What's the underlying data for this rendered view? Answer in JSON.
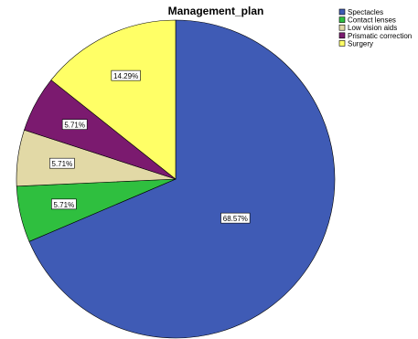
{
  "chart_data": {
    "type": "pie",
    "title": "Management_plan",
    "categories": [
      "Spectacles",
      "Contact lenses",
      "Low vision aids",
      "Prismatic correction",
      "Surgery"
    ],
    "values": [
      68.57,
      5.71,
      5.71,
      5.71,
      14.29
    ],
    "labels": [
      "68.57%",
      "5.71%",
      "5.71%",
      "5.71%",
      "14.29%"
    ],
    "colors": [
      "#3f5bb5",
      "#2fbf3f",
      "#e2d9a6",
      "#7b1a6f",
      "#ffff66"
    ],
    "start_angle_deg": 0,
    "direction": "clockwise",
    "legend_position": "top-right"
  }
}
